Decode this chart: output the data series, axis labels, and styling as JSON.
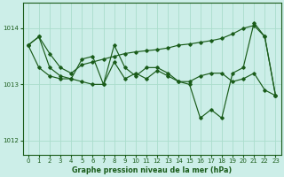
{
  "title": "Graphe pression niveau de la mer (hPa)",
  "background_color": "#cceee8",
  "grid_color": "#aaddcc",
  "line_color": "#1a5c1a",
  "marker_color": "#1a5c1a",
  "xlim": [
    -0.5,
    23.5
  ],
  "ylim": [
    1011.75,
    1014.45
  ],
  "yticks": [
    1012,
    1013,
    1014
  ],
  "xticks": [
    0,
    1,
    2,
    3,
    4,
    5,
    6,
    7,
    8,
    9,
    10,
    11,
    12,
    13,
    14,
    15,
    16,
    17,
    18,
    19,
    20,
    21,
    22,
    23
  ],
  "series": [
    {
      "x": [
        0,
        1,
        2,
        3,
        4,
        5,
        6,
        7,
        8,
        9,
        10,
        11,
        12,
        13,
        14,
        15,
        16,
        17,
        18,
        19,
        20,
        21,
        22,
        23
      ],
      "y": [
        1013.7,
        1013.85,
        1013.55,
        1013.3,
        1013.2,
        1013.35,
        1013.4,
        1013.45,
        1013.5,
        1013.55,
        1013.58,
        1013.6,
        1013.62,
        1013.65,
        1013.7,
        1013.72,
        1013.75,
        1013.78,
        1013.82,
        1013.9,
        1014.0,
        1014.05,
        1013.85,
        1012.8
      ]
    },
    {
      "x": [
        0,
        1,
        2,
        3,
        4,
        5,
        6,
        7,
        8,
        9,
        10,
        11,
        12,
        13,
        14,
        15,
        16,
        17,
        18,
        19,
        20,
        21,
        22,
        23
      ],
      "y": [
        1013.7,
        1013.85,
        1013.3,
        1013.15,
        1013.1,
        1013.45,
        1013.5,
        1013.0,
        1013.7,
        1013.3,
        1013.15,
        1013.3,
        1013.3,
        1013.2,
        1013.05,
        1013.0,
        1012.4,
        1012.55,
        1012.4,
        1013.2,
        1013.3,
        1014.1,
        1013.85,
        1012.8
      ]
    },
    {
      "x": [
        0,
        1,
        2,
        3,
        4,
        5,
        6,
        7,
        8,
        9,
        10,
        11,
        12,
        13,
        14,
        15,
        16,
        17,
        18,
        19,
        20,
        21,
        22,
        23
      ],
      "y": [
        1013.7,
        1013.3,
        1013.15,
        1013.1,
        1013.1,
        1013.05,
        1013.0,
        1013.0,
        1013.4,
        1013.1,
        1013.2,
        1013.1,
        1013.25,
        1013.15,
        1013.05,
        1013.05,
        1013.15,
        1013.2,
        1013.2,
        1013.05,
        1013.1,
        1013.2,
        1012.9,
        1012.8
      ]
    }
  ]
}
